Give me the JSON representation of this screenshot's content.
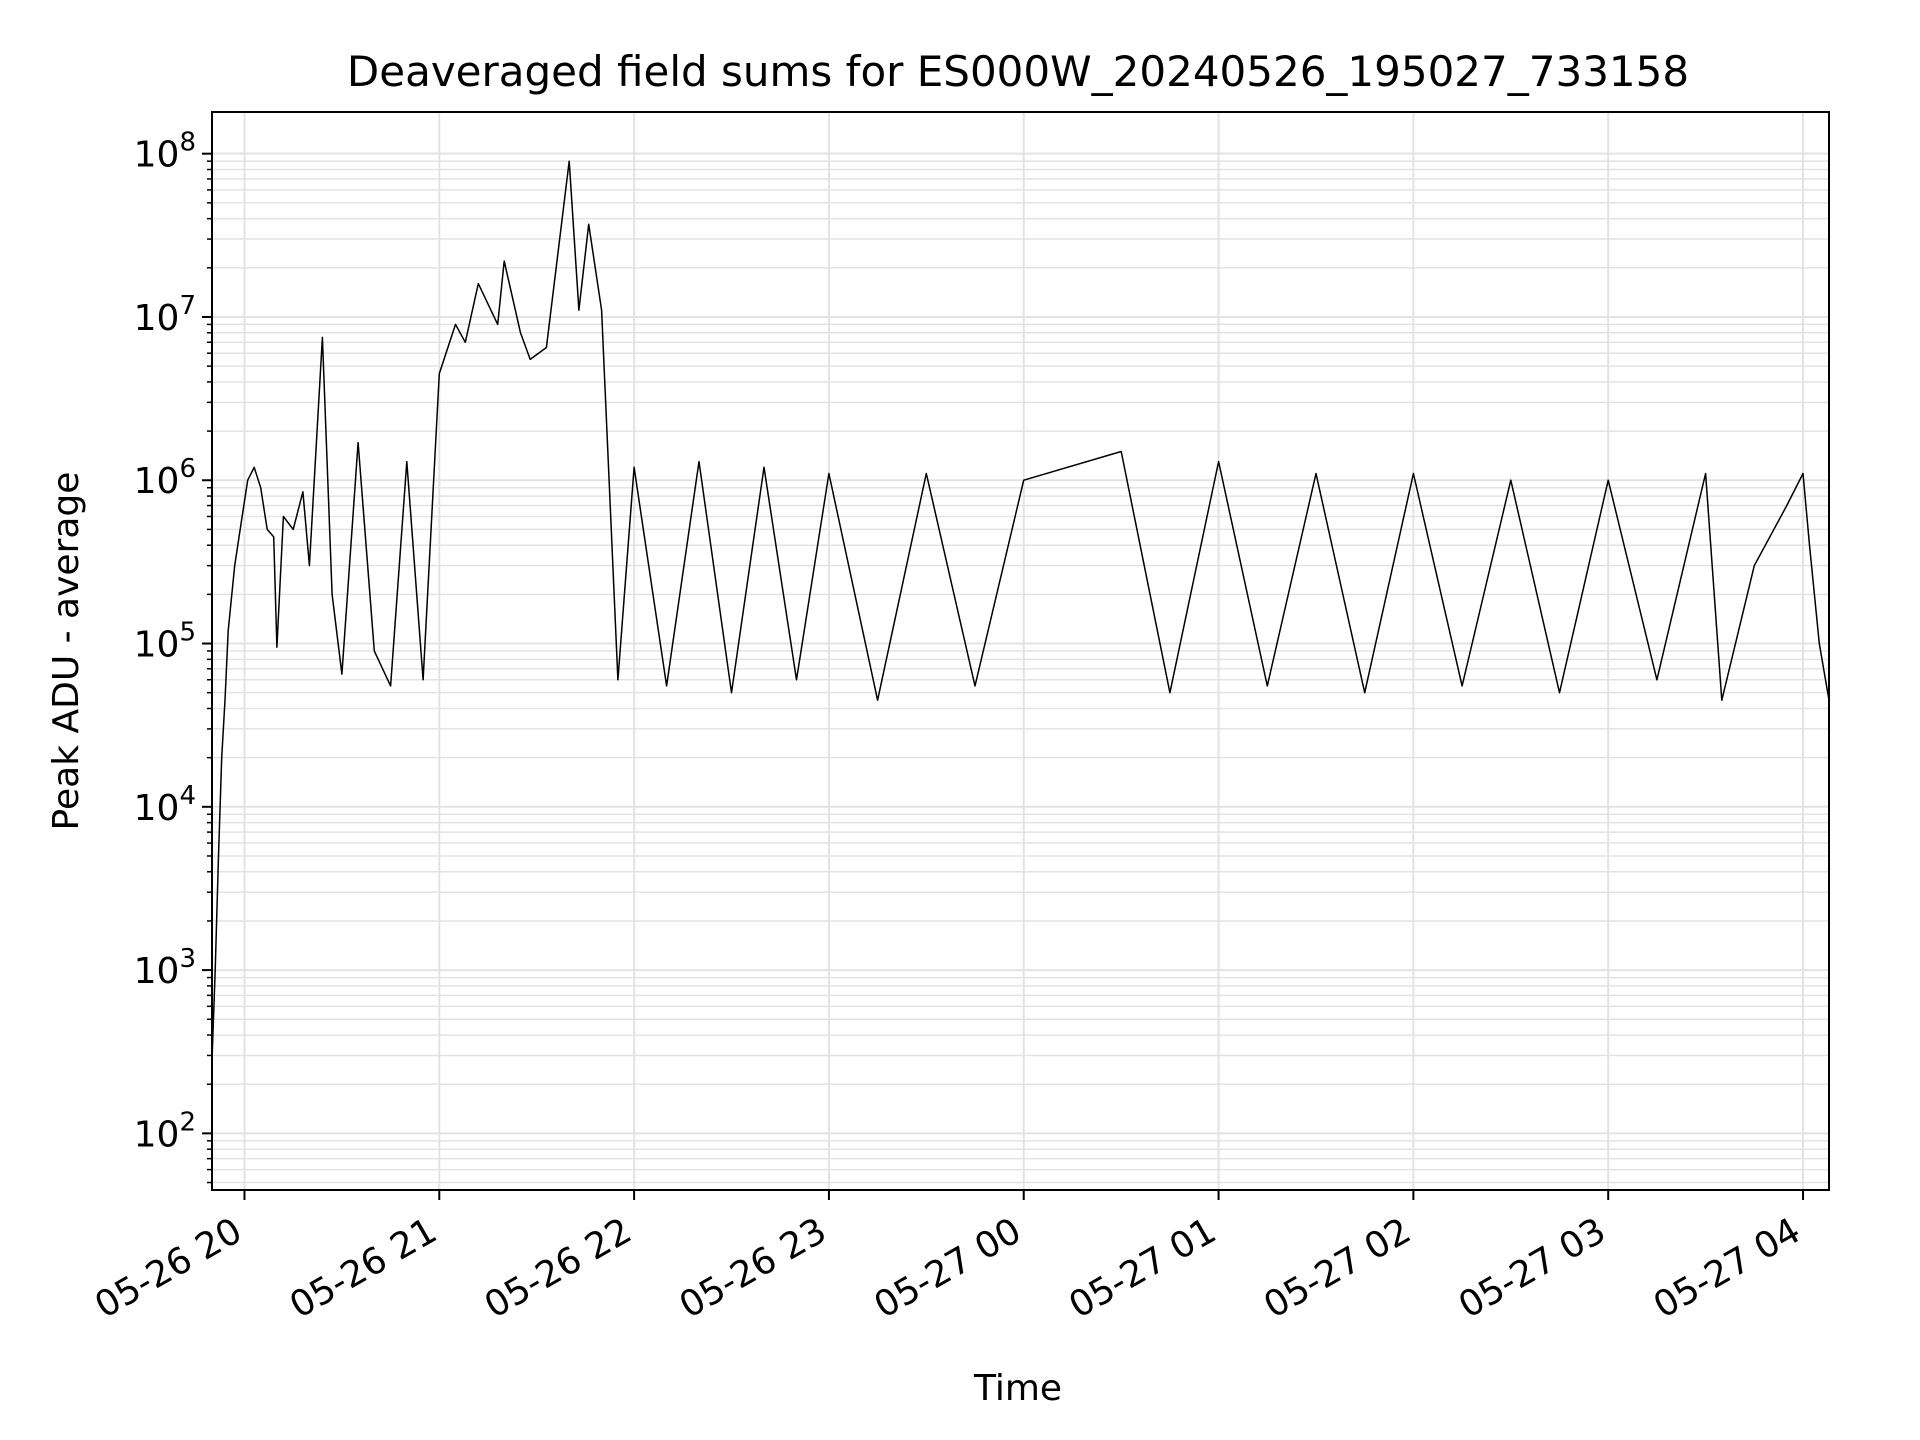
{
  "chart_data": {
    "type": "line",
    "title": "Deaveraged field sums for ES000W_20240526_195027_733158",
    "xlabel": "Time",
    "ylabel": "Peak ADU - average",
    "yscale": "log",
    "ylim": [
      45,
      180000000
    ],
    "xlim": [
      "2024-05-26 19:50",
      "2024-05-27 04:08"
    ],
    "grid": "both (major and minor)",
    "line_color": "#000000",
    "grid_color": "#e3e3e3",
    "x_ticks": [
      {
        "time": "2024-05-26 20:00",
        "label": "05-26 20"
      },
      {
        "time": "2024-05-26 21:00",
        "label": "05-26 21"
      },
      {
        "time": "2024-05-26 22:00",
        "label": "05-26 22"
      },
      {
        "time": "2024-05-26 23:00",
        "label": "05-26 23"
      },
      {
        "time": "2024-05-27 00:00",
        "label": "05-27 00"
      },
      {
        "time": "2024-05-27 01:00",
        "label": "05-27 01"
      },
      {
        "time": "2024-05-27 02:00",
        "label": "05-27 02"
      },
      {
        "time": "2024-05-27 03:00",
        "label": "05-27 03"
      },
      {
        "time": "2024-05-27 04:00",
        "label": "05-27 04"
      }
    ],
    "y_ticks": [
      {
        "value": 100,
        "base": "10",
        "exp": "2"
      },
      {
        "value": 1000,
        "base": "10",
        "exp": "3"
      },
      {
        "value": 10000,
        "base": "10",
        "exp": "4"
      },
      {
        "value": 100000,
        "base": "10",
        "exp": "5"
      },
      {
        "value": 1000000,
        "base": "10",
        "exp": "6"
      },
      {
        "value": 10000000,
        "base": "10",
        "exp": "7"
      },
      {
        "value": 100000000,
        "base": "10",
        "exp": "8"
      }
    ],
    "series": [
      {
        "points": [
          [
            "2024-05-26 19:50",
            280
          ],
          [
            "2024-05-26 19:51",
            1000
          ],
          [
            "2024-05-26 19:52",
            5000
          ],
          [
            "2024-05-26 19:53",
            20000
          ],
          [
            "2024-05-26 19:54",
            45000
          ],
          [
            "2024-05-26 19:55",
            120000
          ],
          [
            "2024-05-26 19:57",
            300000
          ],
          [
            "2024-05-26 19:59",
            550000
          ],
          [
            "2024-05-26 20:01",
            1000000
          ],
          [
            "2024-05-26 20:03",
            1200000
          ],
          [
            "2024-05-26 20:05",
            900000
          ],
          [
            "2024-05-26 20:07",
            500000
          ],
          [
            "2024-05-26 20:09",
            450000
          ],
          [
            "2024-05-26 20:10",
            95000
          ],
          [
            "2024-05-26 20:12",
            600000
          ],
          [
            "2024-05-26 20:15",
            500000
          ],
          [
            "2024-05-26 20:18",
            850000
          ],
          [
            "2024-05-26 20:20",
            300000
          ],
          [
            "2024-05-26 20:24",
            7500000
          ],
          [
            "2024-05-26 20:27",
            200000
          ],
          [
            "2024-05-26 20:30",
            65000
          ],
          [
            "2024-05-26 20:35",
            1700000
          ],
          [
            "2024-05-26 20:40",
            90000
          ],
          [
            "2024-05-26 20:45",
            55000
          ],
          [
            "2024-05-26 20:50",
            1300000
          ],
          [
            "2024-05-26 20:55",
            60000
          ],
          [
            "2024-05-26 21:00",
            4500000
          ],
          [
            "2024-05-26 21:05",
            9000000
          ],
          [
            "2024-05-26 21:08",
            7000000
          ],
          [
            "2024-05-26 21:12",
            16000000
          ],
          [
            "2024-05-26 21:18",
            9000000
          ],
          [
            "2024-05-26 21:20",
            22000000
          ],
          [
            "2024-05-26 21:25",
            8000000
          ],
          [
            "2024-05-26 21:28",
            5500000
          ],
          [
            "2024-05-26 21:33",
            6500000
          ],
          [
            "2024-05-26 21:40",
            90000000
          ],
          [
            "2024-05-26 21:43",
            11000000
          ],
          [
            "2024-05-26 21:46",
            37000000
          ],
          [
            "2024-05-26 21:50",
            11000000
          ],
          [
            "2024-05-26 21:55",
            60000
          ],
          [
            "2024-05-26 22:00",
            1200000
          ],
          [
            "2024-05-26 22:10",
            55000
          ],
          [
            "2024-05-26 22:20",
            1300000
          ],
          [
            "2024-05-26 22:30",
            50000
          ],
          [
            "2024-05-26 22:40",
            1200000
          ],
          [
            "2024-05-26 22:50",
            60000
          ],
          [
            "2024-05-26 23:00",
            1100000
          ],
          [
            "2024-05-26 23:15",
            45000
          ],
          [
            "2024-05-26 23:30",
            1100000
          ],
          [
            "2024-05-26 23:45",
            55000
          ],
          [
            "2024-05-27 00:00",
            1000000
          ],
          [
            "2024-05-27 00:30",
            1500000
          ],
          [
            "2024-05-27 00:45",
            50000
          ],
          [
            "2024-05-27 01:00",
            1300000
          ],
          [
            "2024-05-27 01:15",
            55000
          ],
          [
            "2024-05-27 01:30",
            1100000
          ],
          [
            "2024-05-27 01:45",
            50000
          ],
          [
            "2024-05-27 02:00",
            1100000
          ],
          [
            "2024-05-27 02:15",
            55000
          ],
          [
            "2024-05-27 02:30",
            1000000
          ],
          [
            "2024-05-27 02:45",
            50000
          ],
          [
            "2024-05-27 03:00",
            1000000
          ],
          [
            "2024-05-27 03:15",
            60000
          ],
          [
            "2024-05-27 03:30",
            1100000
          ],
          [
            "2024-05-27 03:35",
            45000
          ],
          [
            "2024-05-27 03:45",
            300000
          ],
          [
            "2024-05-27 03:55",
            700000
          ],
          [
            "2024-05-27 04:00",
            1100000
          ],
          [
            "2024-05-27 04:02",
            400000
          ],
          [
            "2024-05-27 04:05",
            100000
          ],
          [
            "2024-05-27 04:08",
            45000
          ]
        ]
      }
    ]
  }
}
